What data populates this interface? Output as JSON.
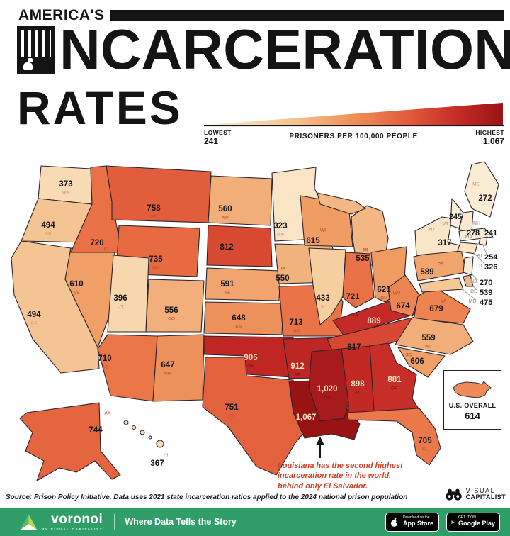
{
  "header": {
    "kicker": "AMERICA'S",
    "title_line1": "INCARCERATION",
    "title_line1_rest": "NCARCERATION",
    "title_line2": "RATES"
  },
  "legend": {
    "lowest_label": "LOWEST",
    "lowest_value": "241",
    "unit_label": "PRISONERS PER 100,000 PEOPLE",
    "highest_label": "HIGHEST",
    "highest_value": "1,067",
    "ramp": [
      [
        241,
        "#faeedb"
      ],
      [
        330,
        "#f9e4c4"
      ],
      [
        430,
        "#f6d0a2"
      ],
      [
        500,
        "#f4c390"
      ],
      [
        560,
        "#f2ae79"
      ],
      [
        615,
        "#f09d64"
      ],
      [
        650,
        "#ee8f58"
      ],
      [
        690,
        "#ec7f4e"
      ],
      [
        725,
        "#e96f44"
      ],
      [
        760,
        "#e25c3b"
      ],
      [
        815,
        "#d74832"
      ],
      [
        890,
        "#c52b26"
      ],
      [
        915,
        "#bd2523"
      ],
      [
        1020,
        "#a81b1c"
      ],
      [
        1067,
        "#991315"
      ]
    ]
  },
  "chart_data": {
    "type": "choropleth_map",
    "title": "America's Incarceration Rates",
    "unit": "prisoners per 100,000 people",
    "min": 241,
    "max": 1067,
    "states": [
      {
        "abbr": "WA",
        "value": 373,
        "display": "373"
      },
      {
        "abbr": "OR",
        "value": 494,
        "display": "494"
      },
      {
        "abbr": "CA",
        "value": 494,
        "display": "494"
      },
      {
        "abbr": "NV",
        "value": 610,
        "display": "610"
      },
      {
        "abbr": "ID",
        "value": 720,
        "display": "720"
      },
      {
        "abbr": "MT",
        "value": 758,
        "display": "758"
      },
      {
        "abbr": "WY",
        "value": 735,
        "display": "735"
      },
      {
        "abbr": "UT",
        "value": 396,
        "display": "396"
      },
      {
        "abbr": "CO",
        "value": 556,
        "display": "556"
      },
      {
        "abbr": "AZ",
        "value": 710,
        "display": "710"
      },
      {
        "abbr": "NM",
        "value": 647,
        "display": "647"
      },
      {
        "abbr": "ND",
        "value": 560,
        "display": "560"
      },
      {
        "abbr": "SD",
        "value": 812,
        "display": "812"
      },
      {
        "abbr": "NE",
        "value": 591,
        "display": "591"
      },
      {
        "abbr": "KS",
        "value": 648,
        "display": "648"
      },
      {
        "abbr": "OK",
        "value": 905,
        "display": "905"
      },
      {
        "abbr": "TX",
        "value": 751,
        "display": "751"
      },
      {
        "abbr": "MN",
        "value": 323,
        "display": "323"
      },
      {
        "abbr": "IA",
        "value": 550,
        "display": "550"
      },
      {
        "abbr": "MO",
        "value": 713,
        "display": "713"
      },
      {
        "abbr": "AR",
        "value": 912,
        "display": "912"
      },
      {
        "abbr": "LA",
        "value": 1067,
        "display": "1,067"
      },
      {
        "abbr": "WI",
        "value": 615,
        "display": "615"
      },
      {
        "abbr": "MI",
        "value": 535,
        "display": "535"
      },
      {
        "abbr": "IL",
        "value": 433,
        "display": "433"
      },
      {
        "abbr": "IN",
        "value": 721,
        "display": "721"
      },
      {
        "abbr": "OH",
        "value": 621,
        "display": "621"
      },
      {
        "abbr": "KY",
        "value": 889,
        "display": "889"
      },
      {
        "abbr": "TN",
        "value": 817,
        "display": "817"
      },
      {
        "abbr": "WV",
        "value": 674,
        "display": "674"
      },
      {
        "abbr": "VA",
        "value": 679,
        "display": "679"
      },
      {
        "abbr": "NC",
        "value": 559,
        "display": "559"
      },
      {
        "abbr": "SC",
        "value": 606,
        "display": "606"
      },
      {
        "abbr": "GA",
        "value": 881,
        "display": "881"
      },
      {
        "abbr": "AL",
        "value": 898,
        "display": "898"
      },
      {
        "abbr": "MS",
        "value": 1020,
        "display": "1,020"
      },
      {
        "abbr": "FL",
        "value": 705,
        "display": "705"
      },
      {
        "abbr": "PA",
        "value": 589,
        "display": "589"
      },
      {
        "abbr": "NY",
        "value": 317,
        "display": "317"
      },
      {
        "abbr": "ME",
        "value": 272,
        "display": "272"
      },
      {
        "abbr": "VT",
        "value": 245,
        "display": "245"
      },
      {
        "abbr": "NH",
        "value": 278,
        "display": "278"
      },
      {
        "abbr": "MA",
        "value": 241,
        "display": "241"
      },
      {
        "abbr": "RI",
        "value": 254,
        "display": "254"
      },
      {
        "abbr": "CT",
        "value": 326,
        "display": "326"
      },
      {
        "abbr": "NJ",
        "value": 270,
        "display": "270"
      },
      {
        "abbr": "DE",
        "value": 539,
        "display": "539"
      },
      {
        "abbr": "MD",
        "value": 475,
        "display": "475"
      },
      {
        "abbr": "AK",
        "value": 744,
        "display": "744"
      },
      {
        "abbr": "HI",
        "value": 367,
        "display": "367"
      }
    ],
    "us_overall": {
      "label": "U.S. OVERALL",
      "value": 614,
      "display": "614"
    }
  },
  "annotation": {
    "text": "Louisiana has the second highest incarceration rate in the world, behind only El Salvador."
  },
  "footer": {
    "source": "Source: Prison Policy Initiative. Data uses 2021 state incarceration ratios applied to the 2024 national prison population",
    "vc_line1": "VISUAL",
    "vc_line2": "CAPITALIST",
    "brand": "voronoi",
    "brand_sub": "BY VISUAL CAPITALIST",
    "tagline": "Where Data Tells the Story",
    "appstore_line1": "Download on the",
    "appstore_line2": "App Store",
    "gplay_line1": "GET IT ON",
    "gplay_line2": "Google Play"
  },
  "colors": {
    "accent_green": "#2f9e68",
    "title_black": "#141414",
    "map_stroke": "#2b2430",
    "annotation_red": "#cf4124",
    "value_text_light": "#f7ddc2",
    "value_text_dark": "#17171c",
    "abbr_light": "#d9a176",
    "abbr_mid": "#c05a33",
    "abbr_dark": "#7f1b14",
    "list_abbr": "#b3a99c"
  }
}
